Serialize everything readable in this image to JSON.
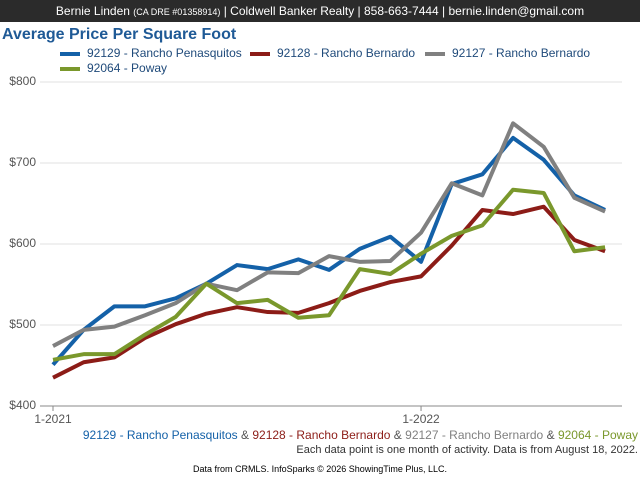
{
  "header": {
    "name": "Bernie Linden",
    "license": "(CA DRE #01358914)",
    "contact": "| Coldwell Banker Realty | 858-663-7444 | bernie.linden@gmail.com"
  },
  "chart_data": {
    "type": "line",
    "title": "Average Price Per Square Foot",
    "categories": [
      "1-2021",
      null,
      null,
      null,
      null,
      null,
      null,
      null,
      null,
      null,
      null,
      null,
      "1-2022",
      null,
      null,
      null,
      null,
      null,
      null
    ],
    "series": [
      {
        "name": "92129 - Rancho Penasquitos",
        "color": "#1461a8",
        "values": [
          451,
          494,
          523,
          523,
          533,
          551,
          574,
          569,
          581,
          568,
          594,
          609,
          578,
          674,
          686,
          731,
          704,
          660,
          642
        ]
      },
      {
        "name": "92128 - Rancho Bernardo",
        "color": "#8c1c17",
        "values": [
          435,
          454,
          460,
          484,
          501,
          514,
          522,
          516,
          515,
          527,
          542,
          553,
          560,
          598,
          642,
          637,
          646,
          605,
          591
        ]
      },
      {
        "name": "92127 - Rancho Bernardo",
        "color": "#808080",
        "values": [
          474,
          494,
          498,
          512,
          527,
          551,
          543,
          565,
          564,
          585,
          578,
          579,
          614,
          675,
          660,
          749,
          720,
          657,
          640
        ]
      },
      {
        "name": "92064 - Poway",
        "color": "#7a982c",
        "values": [
          457,
          464,
          464,
          488,
          510,
          551,
          527,
          531,
          509,
          512,
          569,
          563,
          588,
          610,
          623,
          667,
          663,
          591,
          596
        ]
      }
    ],
    "ylim": [
      400,
      800
    ],
    "yticks": [
      {
        "value": 400,
        "label": "$400"
      },
      {
        "value": 500,
        "label": "$500"
      },
      {
        "value": 600,
        "label": "$600"
      },
      {
        "value": 700,
        "label": "$700"
      },
      {
        "value": 800,
        "label": "$800"
      }
    ],
    "grid": true,
    "legend_separator": "&",
    "note": "Each data point is one month of activity. Data is from August 18, 2022.",
    "source": "Data from CRMLS. InfoSparks © 2026 ShowingTime Plus, LLC."
  }
}
